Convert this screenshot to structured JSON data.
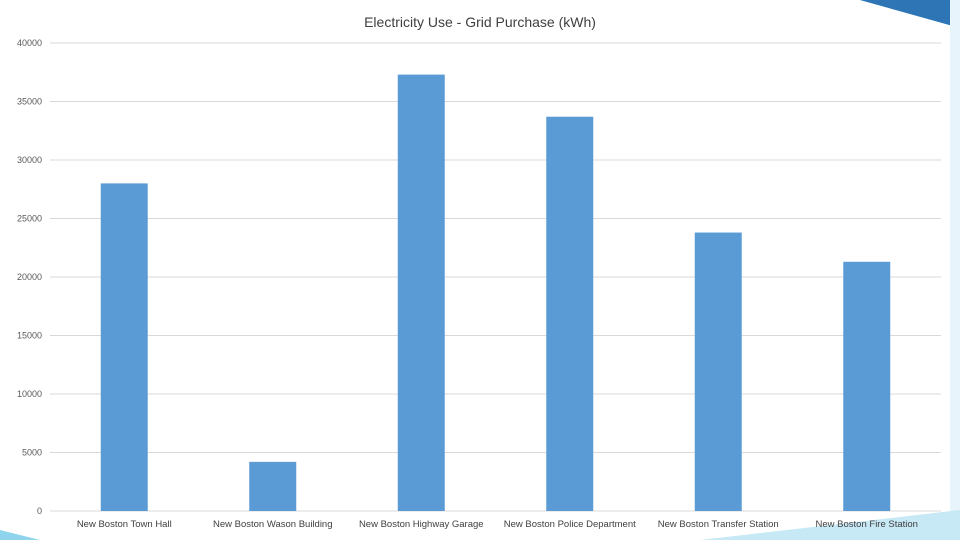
{
  "colors": {
    "bar": "#5b9bd5",
    "grid": "#d9d9d9",
    "axis_text": "#595959",
    "accent_light": "#6dc3e3",
    "accent_dark": "#2e75b6"
  },
  "chart_data": {
    "type": "bar",
    "title": "Electricity Use - Grid Purchase (kWh)",
    "xlabel": "",
    "ylabel": "",
    "ylim": [
      0,
      40000
    ],
    "yticks": [
      0,
      5000,
      10000,
      15000,
      20000,
      25000,
      30000,
      35000,
      40000
    ],
    "grid": true,
    "legend": "none",
    "categories": [
      "New Boston Town Hall",
      "New Boston Wason Building",
      "New Boston Highway Garage",
      "New Boston Police Department",
      "New Boston Transfer Station",
      "New Boston Fire Station"
    ],
    "values": [
      28000,
      4200,
      37300,
      33700,
      23800,
      21300
    ]
  }
}
